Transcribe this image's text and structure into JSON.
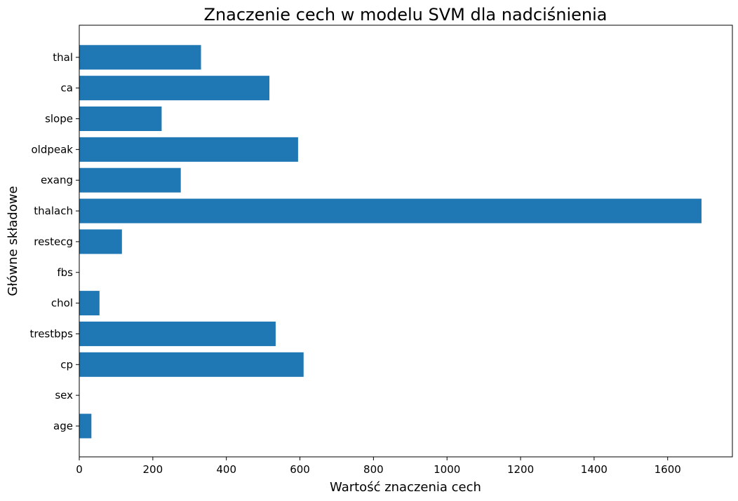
{
  "chart_data": {
    "type": "bar",
    "orientation": "horizontal",
    "title": "Znaczenie cech w modelu SVM dla nadciśnienia",
    "xlabel": "Wartość znaczenia cech",
    "ylabel": "Główne składowe",
    "categories": [
      "age",
      "sex",
      "cp",
      "trestbps",
      "chol",
      "fbs",
      "restecg",
      "thalach",
      "exang",
      "oldpeak",
      "slope",
      "ca",
      "thal"
    ],
    "values": [
      33,
      0,
      610,
      534,
      55,
      0,
      116,
      1692,
      276,
      595,
      224,
      517,
      331
    ],
    "xlim": [
      0,
      1776
    ],
    "xticks": [
      0,
      200,
      400,
      600,
      800,
      1000,
      1200,
      1400,
      1600
    ],
    "bar_color": "#1f77b4",
    "grid": false
  }
}
